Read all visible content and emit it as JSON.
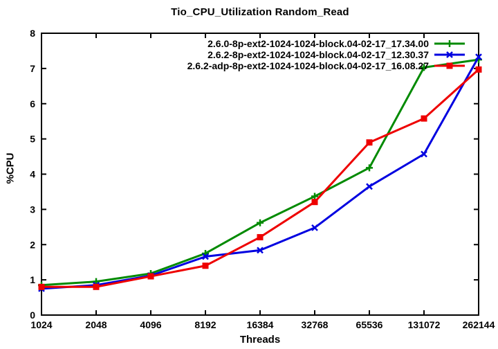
{
  "chart_data": {
    "type": "line",
    "title": "Tio_CPU_Utilization Random_Read",
    "xlabel": "Threads",
    "ylabel": "%CPU",
    "x_scale": "log2",
    "x_tick_labels": [
      "1024",
      "2048",
      "4096",
      "8192",
      "16384",
      "32768",
      "65536",
      "131072",
      "262144"
    ],
    "y_tick_labels": [
      "0",
      "1",
      "2",
      "3",
      "4",
      "5",
      "6",
      "7",
      "8"
    ],
    "ylim": [
      0,
      8
    ],
    "grid": false,
    "legend_position": "top-right-inside",
    "background_color": "#ffffff",
    "axis_color": "#000000",
    "series": [
      {
        "name": "2.6.0-8p-ext2-1024-1024-block.04-02-17_17.34.00",
        "color": "#008a00",
        "marker": "plus",
        "x": [
          1024,
          2048,
          4096,
          8192,
          16384,
          32768,
          65536,
          131072,
          262144
        ],
        "values": [
          0.85,
          0.95,
          1.18,
          1.75,
          2.62,
          3.37,
          4.18,
          7.03,
          7.25
        ]
      },
      {
        "name": "2.6.2-8p-ext2-1024-1024-block.04-02-17_12.30.37",
        "color": "#0000e0",
        "marker": "x",
        "x": [
          1024,
          2048,
          4096,
          8192,
          16384,
          32768,
          65536,
          131072,
          262144
        ],
        "values": [
          0.75,
          0.85,
          1.12,
          1.66,
          1.84,
          2.48,
          3.65,
          4.57,
          7.33
        ]
      },
      {
        "name": "2.6.2-adp-8p-ext2-1024-1024-block.04-02-17_16.08.27",
        "color": "#ee0000",
        "marker": "square",
        "x": [
          1024,
          2048,
          4096,
          8192,
          16384,
          32768,
          65536,
          131072,
          262144
        ],
        "values": [
          0.8,
          0.8,
          1.1,
          1.4,
          2.21,
          3.21,
          4.9,
          5.58,
          6.97
        ]
      }
    ]
  }
}
